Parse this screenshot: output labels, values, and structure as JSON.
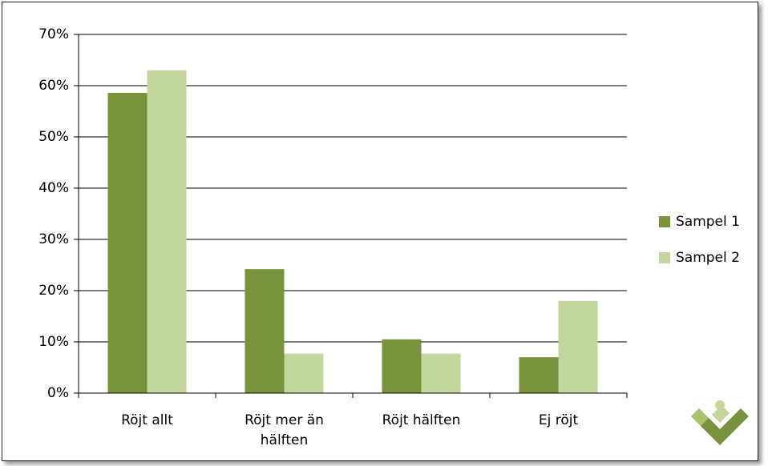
{
  "chart_data": {
    "type": "bar",
    "categories": [
      "Röjt allt",
      "Röjt mer än hälften",
      "Röjt hälften",
      "Ej röjt"
    ],
    "series": [
      {
        "name": "Sampel 1",
        "color": "#77933c",
        "values": [
          58.6,
          24.2,
          10.5,
          7.0
        ]
      },
      {
        "name": "Sampel 2",
        "color": "#c3d69b",
        "values": [
          63.0,
          7.7,
          7.7,
          18.0
        ]
      }
    ],
    "ylim": [
      0,
      70
    ],
    "yticks": [
      {
        "value": 0,
        "label": "0%"
      },
      {
        "value": 10,
        "label": "10%"
      },
      {
        "value": 20,
        "label": "20%"
      },
      {
        "value": 30,
        "label": "30%"
      },
      {
        "value": 40,
        "label": "40%"
      },
      {
        "value": 50,
        "label": "50%"
      },
      {
        "value": 60,
        "label": "60%"
      },
      {
        "value": 70,
        "label": "70%"
      }
    ],
    "grid": true,
    "legend": "right"
  }
}
